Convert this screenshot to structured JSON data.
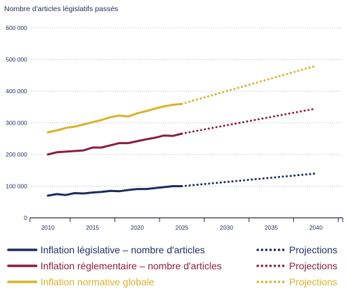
{
  "colors": {
    "legislative": "#1e2d5e",
    "regulatory": "#8a1e3c",
    "normative": "#d9b22a",
    "axis": "#1f2a5a",
    "grid": "#9aa3c0"
  },
  "chart_data": {
    "type": "line",
    "ylabel": "Nombre d'articles législatifs passés",
    "xlabel": "",
    "ylim": [
      0,
      600000
    ],
    "xlim": [
      2008,
      2043
    ],
    "x_ticks": [
      2010,
      2015,
      2020,
      2025,
      2030,
      2035,
      2040
    ],
    "x_tick_labels": [
      "2010",
      "2015",
      "2020",
      "2025",
      "2030",
      "2035",
      "2040"
    ],
    "y_ticks": [
      0,
      100000,
      200000,
      300000,
      400000,
      500000,
      600000
    ],
    "y_tick_labels": [
      "0",
      "100 000",
      "200 000",
      "300 000",
      "400 000",
      "500 000",
      "600 000"
    ],
    "grid": "horizontal dotted",
    "legend_position": "bottom",
    "series": [
      {
        "key": "legislative",
        "name": "Inflation législative – nombre d'articles",
        "x": [
          2010,
          2011,
          2012,
          2013,
          2014,
          2015,
          2016,
          2017,
          2018,
          2019,
          2020,
          2021,
          2022,
          2023,
          2024,
          2025
        ],
        "values": [
          70000,
          75000,
          72000,
          78000,
          77000,
          80000,
          82000,
          85000,
          84000,
          88000,
          91000,
          91000,
          94000,
          97000,
          100000,
          100000
        ]
      },
      {
        "key": "regulatory",
        "name": "Inflation réglementaire – nombre d'articles",
        "x": [
          2010,
          2011,
          2012,
          2013,
          2014,
          2015,
          2016,
          2017,
          2018,
          2019,
          2020,
          2021,
          2022,
          2023,
          2024,
          2025
        ],
        "values": [
          200000,
          207000,
          209000,
          211000,
          213000,
          222000,
          222000,
          229000,
          236000,
          236000,
          242000,
          248000,
          253000,
          260000,
          259000,
          266000
        ]
      },
      {
        "key": "normative",
        "name": "Inflation normative globale",
        "x": [
          2010,
          2011,
          2012,
          2013,
          2014,
          2015,
          2016,
          2017,
          2018,
          2019,
          2020,
          2021,
          2022,
          2023,
          2024,
          2025
        ],
        "values": [
          270000,
          276000,
          284000,
          288000,
          295000,
          302000,
          309000,
          318000,
          323000,
          320000,
          330000,
          337000,
          345000,
          352000,
          357000,
          360000
        ]
      }
    ],
    "projections": [
      {
        "key": "legislative",
        "name": "Projections",
        "x": [
          2025,
          2040
        ],
        "values": [
          100000,
          140000
        ]
      },
      {
        "key": "regulatory",
        "name": "Projections",
        "x": [
          2025,
          2040
        ],
        "values": [
          266000,
          345000
        ]
      },
      {
        "key": "normative",
        "name": "Projections",
        "x": [
          2025,
          2040
        ],
        "values": [
          360000,
          480000
        ]
      }
    ]
  }
}
